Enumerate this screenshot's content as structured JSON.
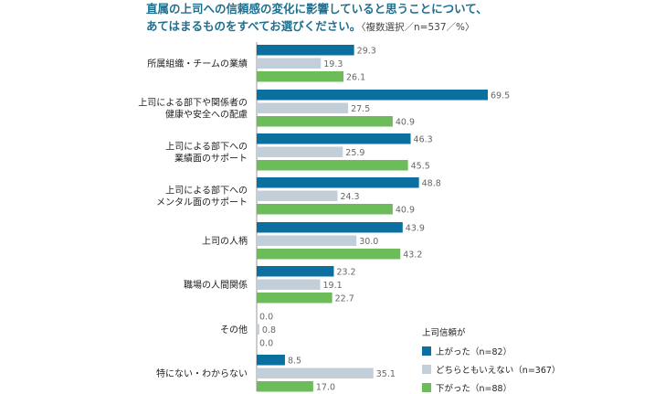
{
  "title": {
    "line1": "直属の上司への信頼感の変化に影響していると思うことについて、",
    "line2": "あてはまるものをすべてお選びください。",
    "note": "〈複数選択／n=537／%〉"
  },
  "colors": {
    "up": "#0b6fa0",
    "neutral": "#c3cfd8",
    "down": "#6cbd5a"
  },
  "chart_data": {
    "type": "bar",
    "orientation": "horizontal",
    "categories": [
      [
        "所属組織・チームの業績"
      ],
      [
        "上司による部下や関係者の",
        "健康や安全への配慮"
      ],
      [
        "上司による部下への",
        "業績面のサポート"
      ],
      [
        "上司による部下への",
        "メンタル面のサポート"
      ],
      [
        "上司の人柄"
      ],
      [
        "職場の人間関係"
      ],
      [
        "その他"
      ],
      [
        "特にない・わからない"
      ]
    ],
    "series": [
      {
        "name": "上がった（n=82）",
        "color_key": "up",
        "values": [
          29.3,
          69.5,
          46.3,
          48.8,
          43.9,
          23.2,
          0.0,
          8.5
        ]
      },
      {
        "name": "どちらともいえない（n=367）",
        "color_key": "neutral",
        "values": [
          19.3,
          27.5,
          25.9,
          24.3,
          30.0,
          19.1,
          0.8,
          35.1
        ]
      },
      {
        "name": "下がった（n=88）",
        "color_key": "down",
        "values": [
          26.1,
          40.9,
          45.5,
          40.9,
          43.2,
          22.7,
          0.0,
          17.0
        ]
      }
    ],
    "legend_title": "上司信頼が",
    "legend_position": "bottom-right",
    "xlim": [
      0,
      70
    ],
    "grid": false
  }
}
